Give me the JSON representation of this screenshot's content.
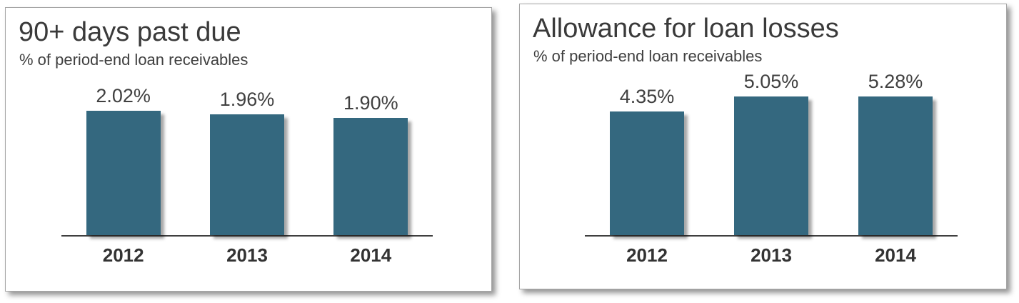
{
  "page": {
    "background": "#ffffff"
  },
  "colors": {
    "bar": "#34687F",
    "title_text": "#3a3a3a",
    "value_text": "#404040",
    "year_text": "#333333",
    "panel_border": "#a6a6a6",
    "axis_line": "#3f3f3f"
  },
  "chart_data": [
    {
      "type": "bar",
      "title": "90+ days past due",
      "subtitle": "% of period-end loan receivables",
      "categories": [
        "2012",
        "2013",
        "2014"
      ],
      "values": [
        2.02,
        1.96,
        1.9
      ],
      "labels": [
        "2.02%",
        "1.96%",
        "1.90%"
      ],
      "ylabel": "% of period-end loan receivables",
      "ylim": [
        0,
        2.67
      ],
      "grid": false,
      "legend": "none",
      "bar_color": "#34687F"
    },
    {
      "type": "bar",
      "title": "Allowance for loan losses",
      "subtitle": "% of period-end loan receivables",
      "categories": [
        "2012",
        "2013",
        "2014"
      ],
      "values": [
        4.35,
        5.05,
        5.28
      ],
      "labels": [
        "4.35%",
        "5.05%",
        "5.28%"
      ],
      "ylabel": "% of period-end loan receivables",
      "ylim": [
        0,
        5.8
      ],
      "grid": false,
      "legend": "none",
      "bar_color": "#34687F"
    }
  ]
}
